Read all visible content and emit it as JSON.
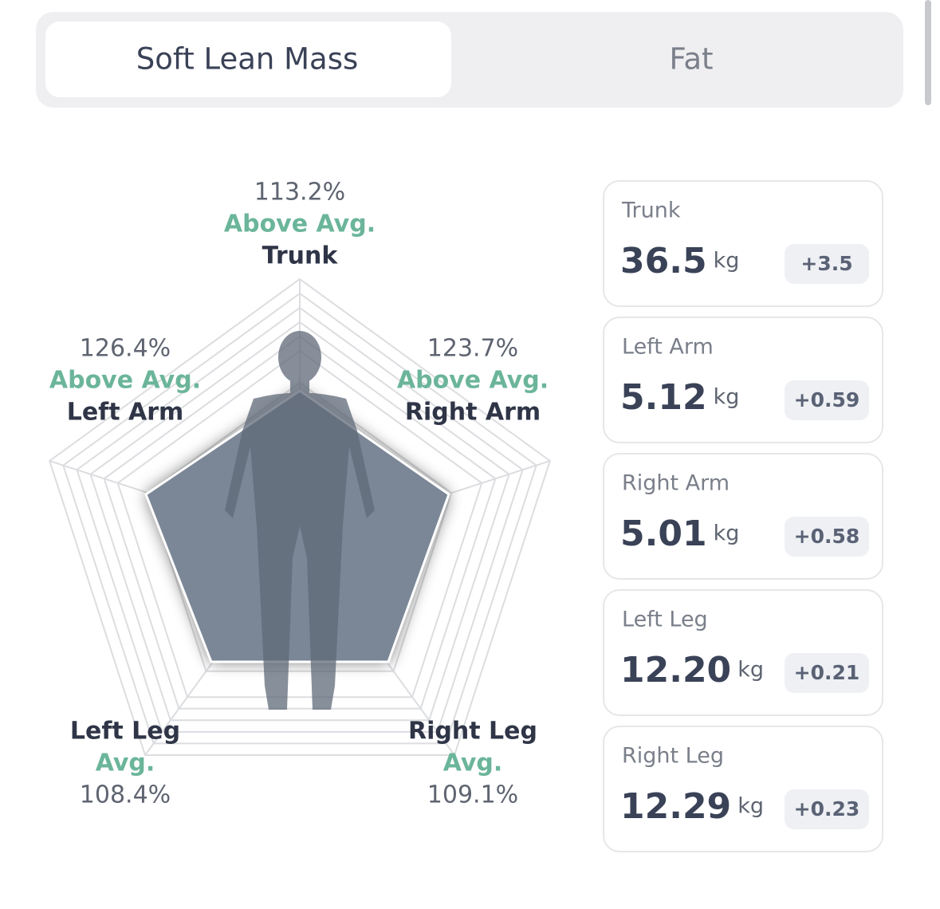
{
  "tabs": [
    "Soft Lean Mass",
    "Fat"
  ],
  "radar": [
    {
      "percent": "113.2%",
      "status": "Above Avg.",
      "name": "Trunk"
    },
    {
      "percent": "123.7%",
      "status": "Above Avg.",
      "name": "Right Arm"
    },
    {
      "percent": "109.1%",
      "status": "Avg.",
      "name": "Right Leg"
    },
    {
      "percent": "108.4%",
      "status": "Avg.",
      "name": "Left Leg"
    },
    {
      "percent": "126.4%",
      "status": "Above Avg.",
      "name": "Left Arm"
    }
  ],
  "cards": [
    {
      "name": "Trunk",
      "value": "36.5",
      "unit": "kg",
      "change": "+3.5"
    },
    {
      "name": "Left Arm",
      "value": "5.12",
      "unit": "kg",
      "change": "+0.59"
    },
    {
      "name": "Right Arm",
      "value": "5.01",
      "unit": "kg",
      "change": "+0.58"
    },
    {
      "name": "Left Leg",
      "value": "12.20",
      "unit": "kg",
      "change": "+0.21"
    },
    {
      "name": "Right Leg",
      "value": "12.29",
      "unit": "kg",
      "change": "+0.23"
    }
  ]
}
